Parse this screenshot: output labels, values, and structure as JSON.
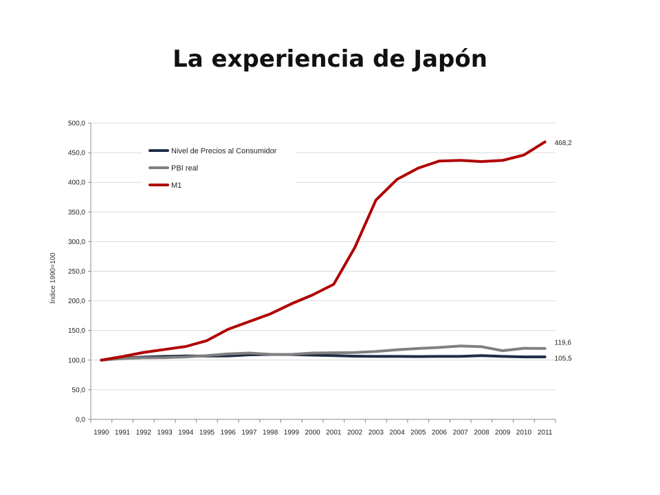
{
  "slide": {
    "title": "La experiencia de Japón"
  },
  "chart_data": {
    "type": "line",
    "title": "",
    "xlabel": "",
    "ylabel": "Índice 1990=100",
    "ylim": [
      0,
      500
    ],
    "y_ticks": [
      "0,0",
      "50,0",
      "100,0",
      "150,0",
      "200,0",
      "250,0",
      "300,0",
      "350,0",
      "400,0",
      "450,0",
      "500,0"
    ],
    "y_tick_values": [
      0,
      50,
      100,
      150,
      200,
      250,
      300,
      350,
      400,
      450,
      500
    ],
    "grid": true,
    "legend_position": "top-left",
    "x": [
      "1990",
      "1991",
      "1992",
      "1993",
      "1994",
      "1995",
      "1996",
      "1997",
      "1998",
      "1999",
      "2000",
      "2001",
      "2002",
      "2003",
      "2004",
      "2005",
      "2006",
      "2007",
      "2008",
      "2009",
      "2010",
      "2011"
    ],
    "series": [
      {
        "name": "Nivel de Precios al Consumidor",
        "color": "#1f2d45",
        "values": [
          100,
          103.3,
          105.1,
          106.3,
          107.0,
          106.9,
          107.0,
          108.9,
          109.6,
          109.3,
          108.5,
          107.6,
          106.6,
          106.3,
          106.3,
          106.0,
          106.3,
          106.3,
          107.7,
          106.3,
          105.5,
          105.5
        ],
        "end_label": "105,5"
      },
      {
        "name": "PBI real",
        "color": "#808080",
        "values": [
          100,
          102.7,
          103.9,
          104.2,
          105.5,
          107.7,
          110.4,
          111.9,
          109.7,
          109.6,
          112.0,
          112.4,
          112.8,
          114.6,
          117.4,
          119.6,
          121.4,
          123.9,
          122.6,
          115.9,
          120.0,
          119.6
        ],
        "end_label": "119,6"
      },
      {
        "name": "M1",
        "color": "#b00000",
        "values": [
          100,
          106,
          113,
          118,
          123,
          133,
          152,
          165,
          178,
          195,
          210,
          228,
          290,
          370,
          405,
          424,
          436,
          437,
          435,
          437,
          446,
          468.2
        ],
        "end_label": "468,2"
      }
    ]
  }
}
